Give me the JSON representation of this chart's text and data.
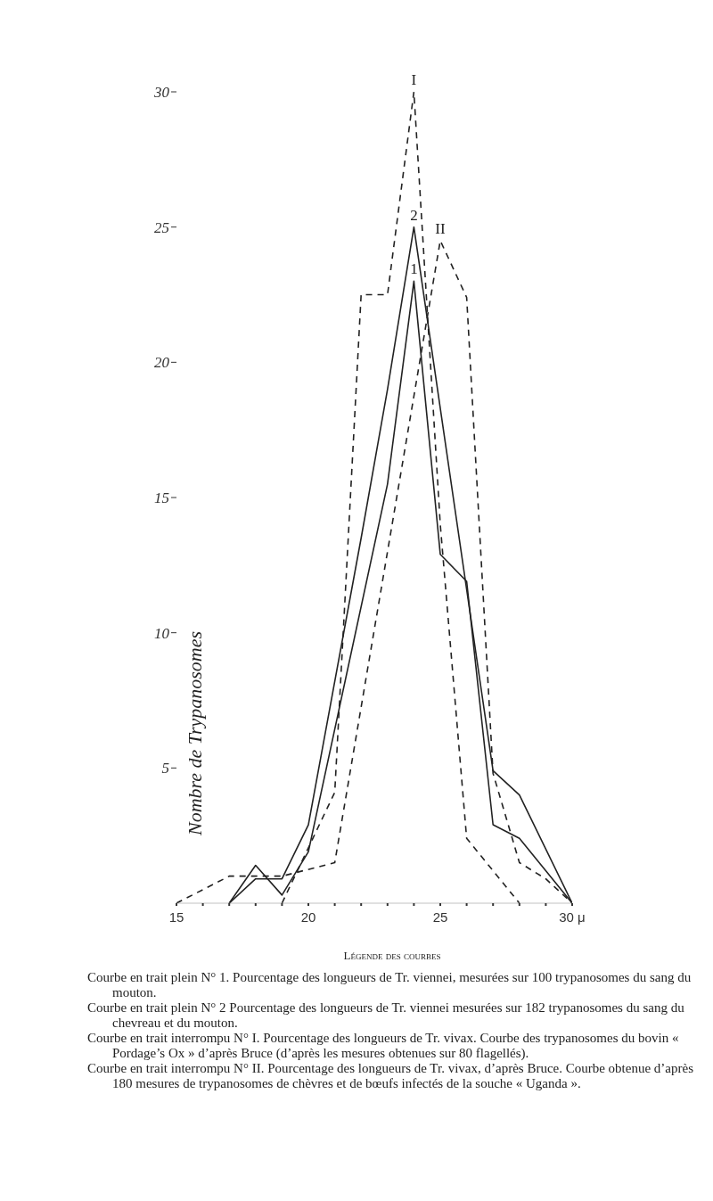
{
  "chart_data": {
    "type": "line",
    "ylabel": "Nombre de Trypanosomes",
    "xlim": [
      15,
      30
    ],
    "ylim": [
      0,
      30
    ],
    "xticks": [
      15,
      {
        "value": 16,
        "label": null
      },
      {
        "value": 17,
        "label": null
      },
      {
        "value": 18,
        "label": null
      },
      {
        "value": 19,
        "label": null
      },
      20,
      {
        "value": 21,
        "label": null
      },
      {
        "value": 22,
        "label": null
      },
      {
        "value": 23,
        "label": null
      },
      {
        "value": 24,
        "label": null
      },
      25,
      {
        "value": 26,
        "label": null
      },
      {
        "value": 27,
        "label": null
      },
      {
        "value": 28,
        "label": null
      },
      {
        "value": 29,
        "label": null
      },
      {
        "value": 30,
        "label": "30 μ"
      }
    ],
    "yticks": [
      5,
      10,
      15,
      20,
      25,
      30
    ],
    "grid": false,
    "legend": false,
    "marker": "none",
    "series": [
      {
        "name": "1",
        "color": "#222222",
        "line_style": "solid",
        "x": [
          17,
          18,
          19,
          20,
          23,
          24,
          25,
          26,
          27,
          28,
          30
        ],
        "values": [
          0,
          1.4,
          0.3,
          1.9,
          15.5,
          23,
          12.9,
          11.9,
          2.9,
          2.4,
          0
        ]
      },
      {
        "name": "2",
        "color": "#222222",
        "line_style": "solid",
        "x": [
          17,
          18,
          19,
          20,
          22,
          23,
          24,
          27,
          28,
          30
        ],
        "values": [
          0,
          0.9,
          0.9,
          2.9,
          13.5,
          19,
          25,
          4.9,
          4,
          0
        ]
      },
      {
        "name": "I",
        "color": "#222222",
        "line_style": "dashed",
        "x": [
          19,
          21,
          22,
          23,
          24,
          25,
          26,
          28
        ],
        "values": [
          0,
          4.1,
          22.5,
          22.5,
          30,
          14,
          2.4,
          0
        ]
      },
      {
        "name": "II",
        "color": "#222222",
        "line_style": "dashed",
        "x": [
          15,
          17,
          19,
          21,
          25,
          26,
          27,
          28,
          29,
          30
        ],
        "values": [
          0,
          1,
          1,
          1.5,
          24.5,
          22.4,
          4.8,
          1.5,
          0.9,
          0
        ]
      }
    ],
    "annotations": [
      "Légende des courbes",
      "Courbe en trait plein N° 1. Pourcentage des longueurs de Tr. viennei, mesurées sur 100 trypanosomes du sang du mouton.",
      "Courbe en trait plein N° 2 Pourcentage des longueurs de Tr. viennei mesurées sur 182 trypanosomes du sang du chevreau et du mouton.",
      "Courbe en trait interrompu N° I. Pourcentage des longueurs de Tr. vivax. Courbe des trypanosomes du bovin « Pordage’s Ox » d’après Bruce (d’après les mesures obtenues sur 80 flagellés).",
      "Courbe en trait interrompu N° II. Pourcentage des longueurs de Tr. vivax, d’après Bruce. Courbe obtenue d’après 180 mesures de trypanosomes de chèvres et de bœufs infectés de la souche « Uganda »."
    ]
  }
}
